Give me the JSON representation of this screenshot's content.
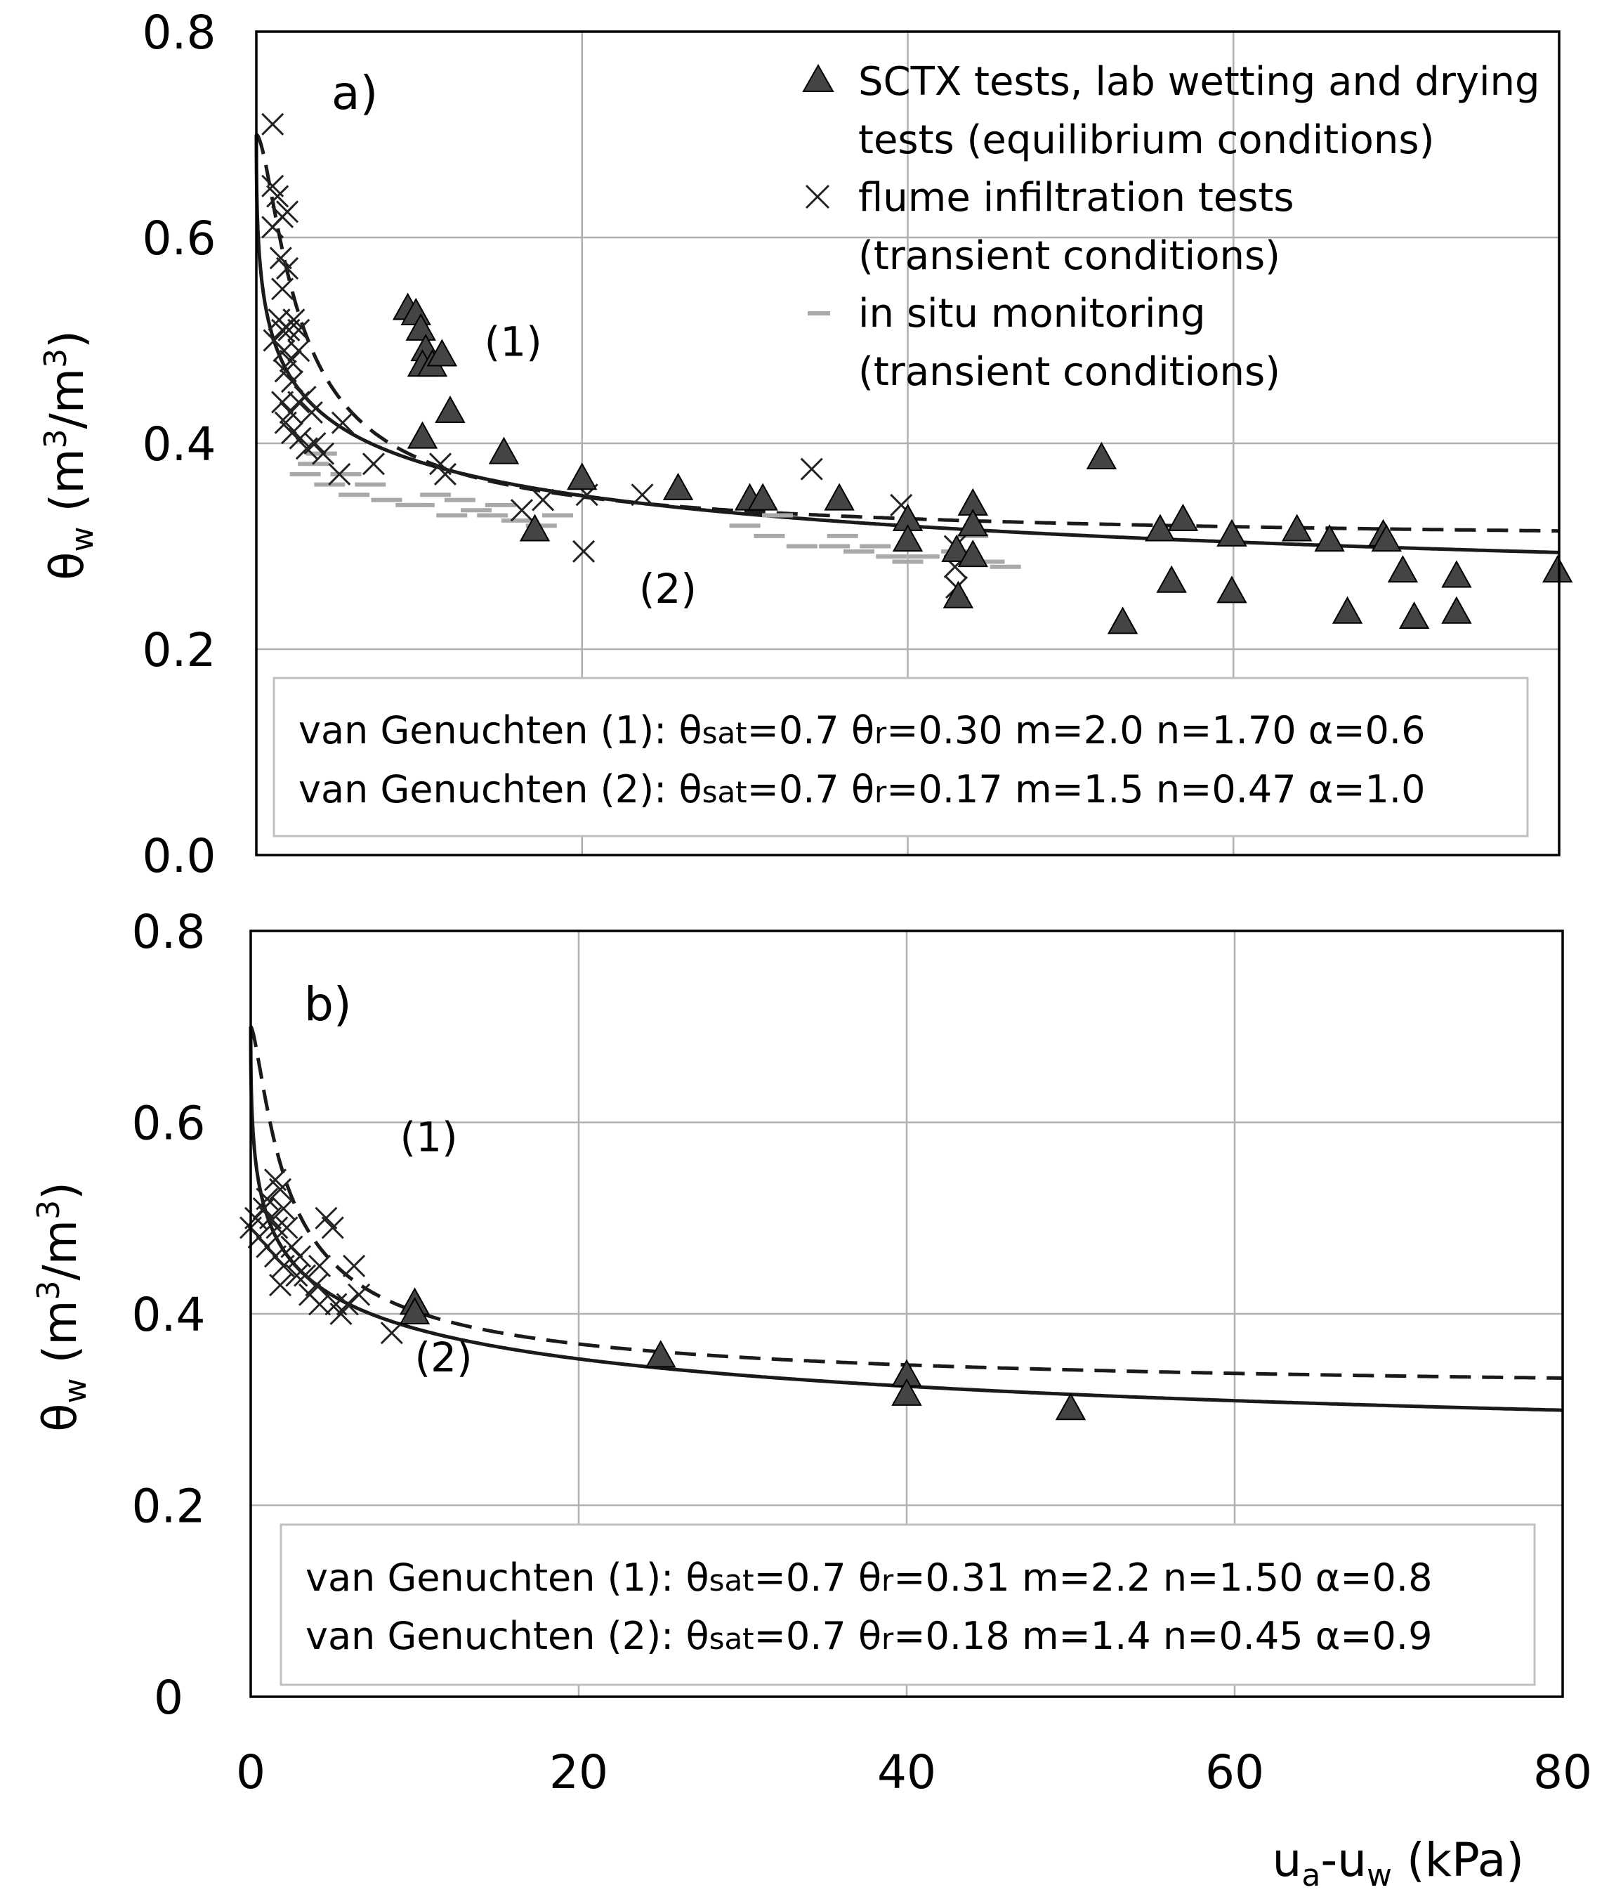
{
  "figure": {
    "x_axis_label": "u",
    "x_axis_label_sub_a": "a",
    "x_axis_label_mid": "-u",
    "x_axis_label_sub_w": "w",
    "x_axis_label_unit": " (kPa)",
    "y_axis_label_theta": "θ",
    "y_axis_label_sub": "w",
    "y_axis_label_rest": " (m",
    "y_axis_label_sup1": "3",
    "y_axis_label_slash": "/m",
    "y_axis_label_sup2": "3",
    "y_axis_label_close": ")"
  },
  "legend": {
    "triangle_line1": "SCTX tests, lab wetting and drying",
    "triangle_line2": "tests (equilibrium conditions)",
    "cross_line1": "flume infiltration tests",
    "cross_line2": "(transient conditions)",
    "dash_line1": "in situ monitoring",
    "dash_line2": "(transient conditions)"
  },
  "colors": {
    "triangle": "#444444",
    "cross": "#222222",
    "insitu": "#a9a9a9",
    "curve": "#1a1a1a",
    "grid": "#b0b0b0"
  },
  "chart_data": [
    {
      "type": "scatter",
      "panel_label": "a)",
      "xlim": [
        0,
        80
      ],
      "ylim": [
        0,
        0.8
      ],
      "x_ticks": [
        0,
        20,
        40,
        60,
        80
      ],
      "y_ticks": [
        0.0,
        0.2,
        0.4,
        0.6,
        0.8
      ],
      "y_tick_labels": [
        "0.0",
        "0.2",
        "0.4",
        "0.6",
        "0.8"
      ],
      "show_x_tick_labels": false,
      "grid": true,
      "legend_position": "top-right",
      "curve_labels": [
        {
          "text": "(1)",
          "x": 14,
          "y": 0.485
        },
        {
          "text": "(2)",
          "x": 23.5,
          "y": 0.245
        }
      ],
      "param_lines": [
        {
          "label": "van Genuchten (1):",
          "theta_sat_sym": "θ",
          "theta_sat_sub": "sat",
          "theta_sat_val": "=0.7",
          "theta_r_sym": "θ",
          "theta_r_sub": "r",
          "theta_r_val": "=0.30",
          "m": "m=2.0",
          "n": "n=1.70",
          "alpha": "α=0.6"
        },
        {
          "label": "van Genuchten (2):",
          "theta_sat_sym": "θ",
          "theta_sat_sub": "sat",
          "theta_sat_val": "=0.7",
          "theta_r_sym": "θ",
          "theta_r_sub": "r",
          "theta_r_val": "=0.17",
          "m": "m=1.5",
          "n": "n=0.47",
          "alpha": "α=1.0"
        }
      ],
      "curves": [
        {
          "id": "1",
          "style": "dashed",
          "theta_sat": 0.7,
          "theta_r": 0.3,
          "m": 2.0,
          "n": 1.7,
          "alpha": 0.6
        },
        {
          "id": "2",
          "style": "solid",
          "theta_sat": 0.7,
          "theta_r": 0.17,
          "m": 1.5,
          "n": 0.47,
          "alpha": 1.0
        }
      ],
      "series": [
        {
          "marker": "triangle",
          "points": [
            [
              9.3,
              0.53
            ],
            [
              9.8,
              0.525
            ],
            [
              10.1,
              0.51
            ],
            [
              10.4,
              0.49
            ],
            [
              10.2,
              0.475
            ],
            [
              10.8,
              0.475
            ],
            [
              11.4,
              0.485
            ],
            [
              11.9,
              0.43
            ],
            [
              10.2,
              0.405
            ],
            [
              15.2,
              0.39
            ],
            [
              17.1,
              0.315
            ],
            [
              20.0,
              0.365
            ],
            [
              25.9,
              0.355
            ],
            [
              30.3,
              0.345
            ],
            [
              31.1,
              0.345
            ],
            [
              35.8,
              0.345
            ],
            [
              40.0,
              0.325
            ],
            [
              40.0,
              0.305
            ],
            [
              43.0,
              0.295
            ],
            [
              43.1,
              0.25
            ],
            [
              44.0,
              0.34
            ],
            [
              44.0,
              0.32
            ],
            [
              44.0,
              0.29
            ],
            [
              51.9,
              0.385
            ],
            [
              53.2,
              0.225
            ],
            [
              55.5,
              0.315
            ],
            [
              56.2,
              0.265
            ],
            [
              56.9,
              0.325
            ],
            [
              59.9,
              0.31
            ],
            [
              59.9,
              0.255
            ],
            [
              63.9,
              0.315
            ],
            [
              65.9,
              0.305
            ],
            [
              67.0,
              0.235
            ],
            [
              69.2,
              0.31
            ],
            [
              69.4,
              0.305
            ],
            [
              70.4,
              0.275
            ],
            [
              71.1,
              0.23
            ],
            [
              73.7,
              0.27
            ],
            [
              73.7,
              0.235
            ],
            [
              79.9,
              0.275
            ]
          ]
        },
        {
          "marker": "cross",
          "points": [
            [
              1.0,
              0.71
            ],
            [
              1.0,
              0.65
            ],
            [
              1.3,
              0.64
            ],
            [
              1.0,
              0.61
            ],
            [
              1.6,
              0.62
            ],
            [
              1.9,
              0.625
            ],
            [
              1.5,
              0.58
            ],
            [
              1.9,
              0.57
            ],
            [
              1.6,
              0.55
            ],
            [
              1.4,
              0.52
            ],
            [
              1.1,
              0.5
            ],
            [
              1.6,
              0.51
            ],
            [
              2.0,
              0.51
            ],
            [
              2.3,
              0.52
            ],
            [
              2.6,
              0.51
            ],
            [
              1.7,
              0.49
            ],
            [
              2.1,
              0.48
            ],
            [
              2.6,
              0.49
            ],
            [
              1.8,
              0.47
            ],
            [
              2.2,
              0.46
            ],
            [
              1.6,
              0.44
            ],
            [
              2.1,
              0.43
            ],
            [
              2.6,
              0.44
            ],
            [
              3.0,
              0.445
            ],
            [
              3.4,
              0.43
            ],
            [
              1.8,
              0.42
            ],
            [
              2.2,
              0.41
            ],
            [
              2.7,
              0.405
            ],
            [
              3.1,
              0.395
            ],
            [
              3.6,
              0.4
            ],
            [
              4.1,
              0.39
            ],
            [
              5.3,
              0.42
            ],
            [
              5.1,
              0.37
            ],
            [
              7.2,
              0.38
            ],
            [
              11.3,
              0.38
            ],
            [
              11.6,
              0.37
            ],
            [
              16.3,
              0.335
            ],
            [
              17.6,
              0.345
            ],
            [
              20.1,
              0.295
            ],
            [
              20.3,
              0.35
            ],
            [
              23.7,
              0.35
            ],
            [
              34.1,
              0.375
            ],
            [
              39.6,
              0.34
            ],
            [
              42.9,
              0.3
            ],
            [
              42.9,
              0.28
            ],
            [
              43.0,
              0.26
            ]
          ]
        },
        {
          "marker": "dash",
          "points": [
            [
              3.5,
              0.38
            ],
            [
              3.0,
              0.37
            ],
            [
              4.5,
              0.36
            ],
            [
              6.0,
              0.35
            ],
            [
              8.0,
              0.345
            ],
            [
              9.5,
              0.34
            ],
            [
              11.0,
              0.35
            ],
            [
              12.5,
              0.345
            ],
            [
              12.0,
              0.33
            ],
            [
              14.5,
              0.33
            ],
            [
              16.0,
              0.325
            ],
            [
              17.5,
              0.32
            ],
            [
              18.5,
              0.33
            ],
            [
              30.0,
              0.32
            ],
            [
              31.5,
              0.31
            ],
            [
              33.5,
              0.3
            ],
            [
              35.5,
              0.3
            ],
            [
              37.0,
              0.295
            ],
            [
              39.0,
              0.29
            ],
            [
              41.0,
              0.29
            ],
            [
              43.0,
              0.295
            ],
            [
              45.0,
              0.285
            ],
            [
              46.0,
              0.28
            ],
            [
              44.0,
              0.31
            ],
            [
              4.0,
              0.39
            ],
            [
              5.5,
              0.37
            ],
            [
              7.0,
              0.36
            ],
            [
              10.0,
              0.34
            ],
            [
              13.5,
              0.335
            ],
            [
              15.0,
              0.34
            ],
            [
              32.0,
              0.33
            ],
            [
              36.0,
              0.31
            ],
            [
              38.0,
              0.3
            ],
            [
              40.0,
              0.285
            ]
          ]
        }
      ]
    },
    {
      "type": "scatter",
      "panel_label": "b)",
      "xlim": [
        0,
        80
      ],
      "ylim": [
        0,
        0.8
      ],
      "x_ticks": [
        0,
        20,
        40,
        60,
        80
      ],
      "x_tick_labels": [
        "0",
        "20",
        "40",
        "60",
        "80"
      ],
      "y_ticks": [
        0,
        0.2,
        0.4,
        0.6,
        0.8
      ],
      "y_tick_labels": [
        "0",
        "0.2",
        "0.4",
        "0.6",
        "0.8"
      ],
      "show_x_tick_labels": true,
      "grid": true,
      "curve_labels": [
        {
          "text": "(1)",
          "x": 9.1,
          "y": 0.57
        },
        {
          "text": "(2)",
          "x": 10.0,
          "y": 0.34
        }
      ],
      "param_lines": [
        {
          "label": "van Genuchten (1):",
          "theta_sat_sym": "θ",
          "theta_sat_sub": "sat",
          "theta_sat_val": "=0.7",
          "theta_r_sym": "θ",
          "theta_r_sub": "r",
          "theta_r_val": "=0.31",
          "m": "m=2.2",
          "n": "n=1.50",
          "alpha": "α=0.8"
        },
        {
          "label": "van Genuchten (2):",
          "theta_sat_sym": "θ",
          "theta_sat_sub": "sat",
          "theta_sat_val": "=0.7",
          "theta_r_sym": "θ",
          "theta_r_sub": "r",
          "theta_r_val": "=0.18",
          "m": "m=1.4",
          "n": "n=0.45",
          "alpha": "α=0.9"
        }
      ],
      "curves": [
        {
          "id": "1",
          "style": "dashed",
          "theta_sat": 0.7,
          "theta_r": 0.31,
          "m": 2.2,
          "n": 1.5,
          "alpha": 0.8
        },
        {
          "id": "2",
          "style": "solid",
          "theta_sat": 0.7,
          "theta_r": 0.18,
          "m": 1.4,
          "n": 0.45,
          "alpha": 0.9
        }
      ],
      "series": [
        {
          "marker": "triangle",
          "points": [
            [
              10.0,
              0.41
            ],
            [
              10.0,
              0.4
            ],
            [
              25.0,
              0.355
            ],
            [
              40.0,
              0.335
            ],
            [
              40.0,
              0.315
            ],
            [
              50.0,
              0.3
            ]
          ]
        },
        {
          "marker": "cross",
          "points": [
            [
              0.0,
              0.49
            ],
            [
              0.3,
              0.5
            ],
            [
              0.5,
              0.48
            ],
            [
              0.8,
              0.51
            ],
            [
              1.0,
              0.52
            ],
            [
              1.2,
              0.5
            ],
            [
              1.0,
              0.47
            ],
            [
              1.5,
              0.54
            ],
            [
              1.8,
              0.53
            ],
            [
              2.0,
              0.51
            ],
            [
              1.6,
              0.49
            ],
            [
              2.2,
              0.49
            ],
            [
              1.5,
              0.46
            ],
            [
              2.0,
              0.45
            ],
            [
              1.8,
              0.43
            ],
            [
              2.5,
              0.47
            ],
            [
              3.0,
              0.46
            ],
            [
              3.3,
              0.44
            ],
            [
              3.6,
              0.42
            ],
            [
              4.2,
              0.45
            ],
            [
              4.6,
              0.5
            ],
            [
              5.0,
              0.49
            ],
            [
              4.2,
              0.41
            ],
            [
              5.2,
              0.41
            ],
            [
              5.5,
              0.4
            ],
            [
              5.9,
              0.41
            ],
            [
              6.3,
              0.45
            ],
            [
              6.6,
              0.42
            ],
            [
              8.6,
              0.38
            ],
            [
              2.8,
              0.44
            ],
            [
              4.0,
              0.43
            ]
          ]
        }
      ]
    }
  ]
}
